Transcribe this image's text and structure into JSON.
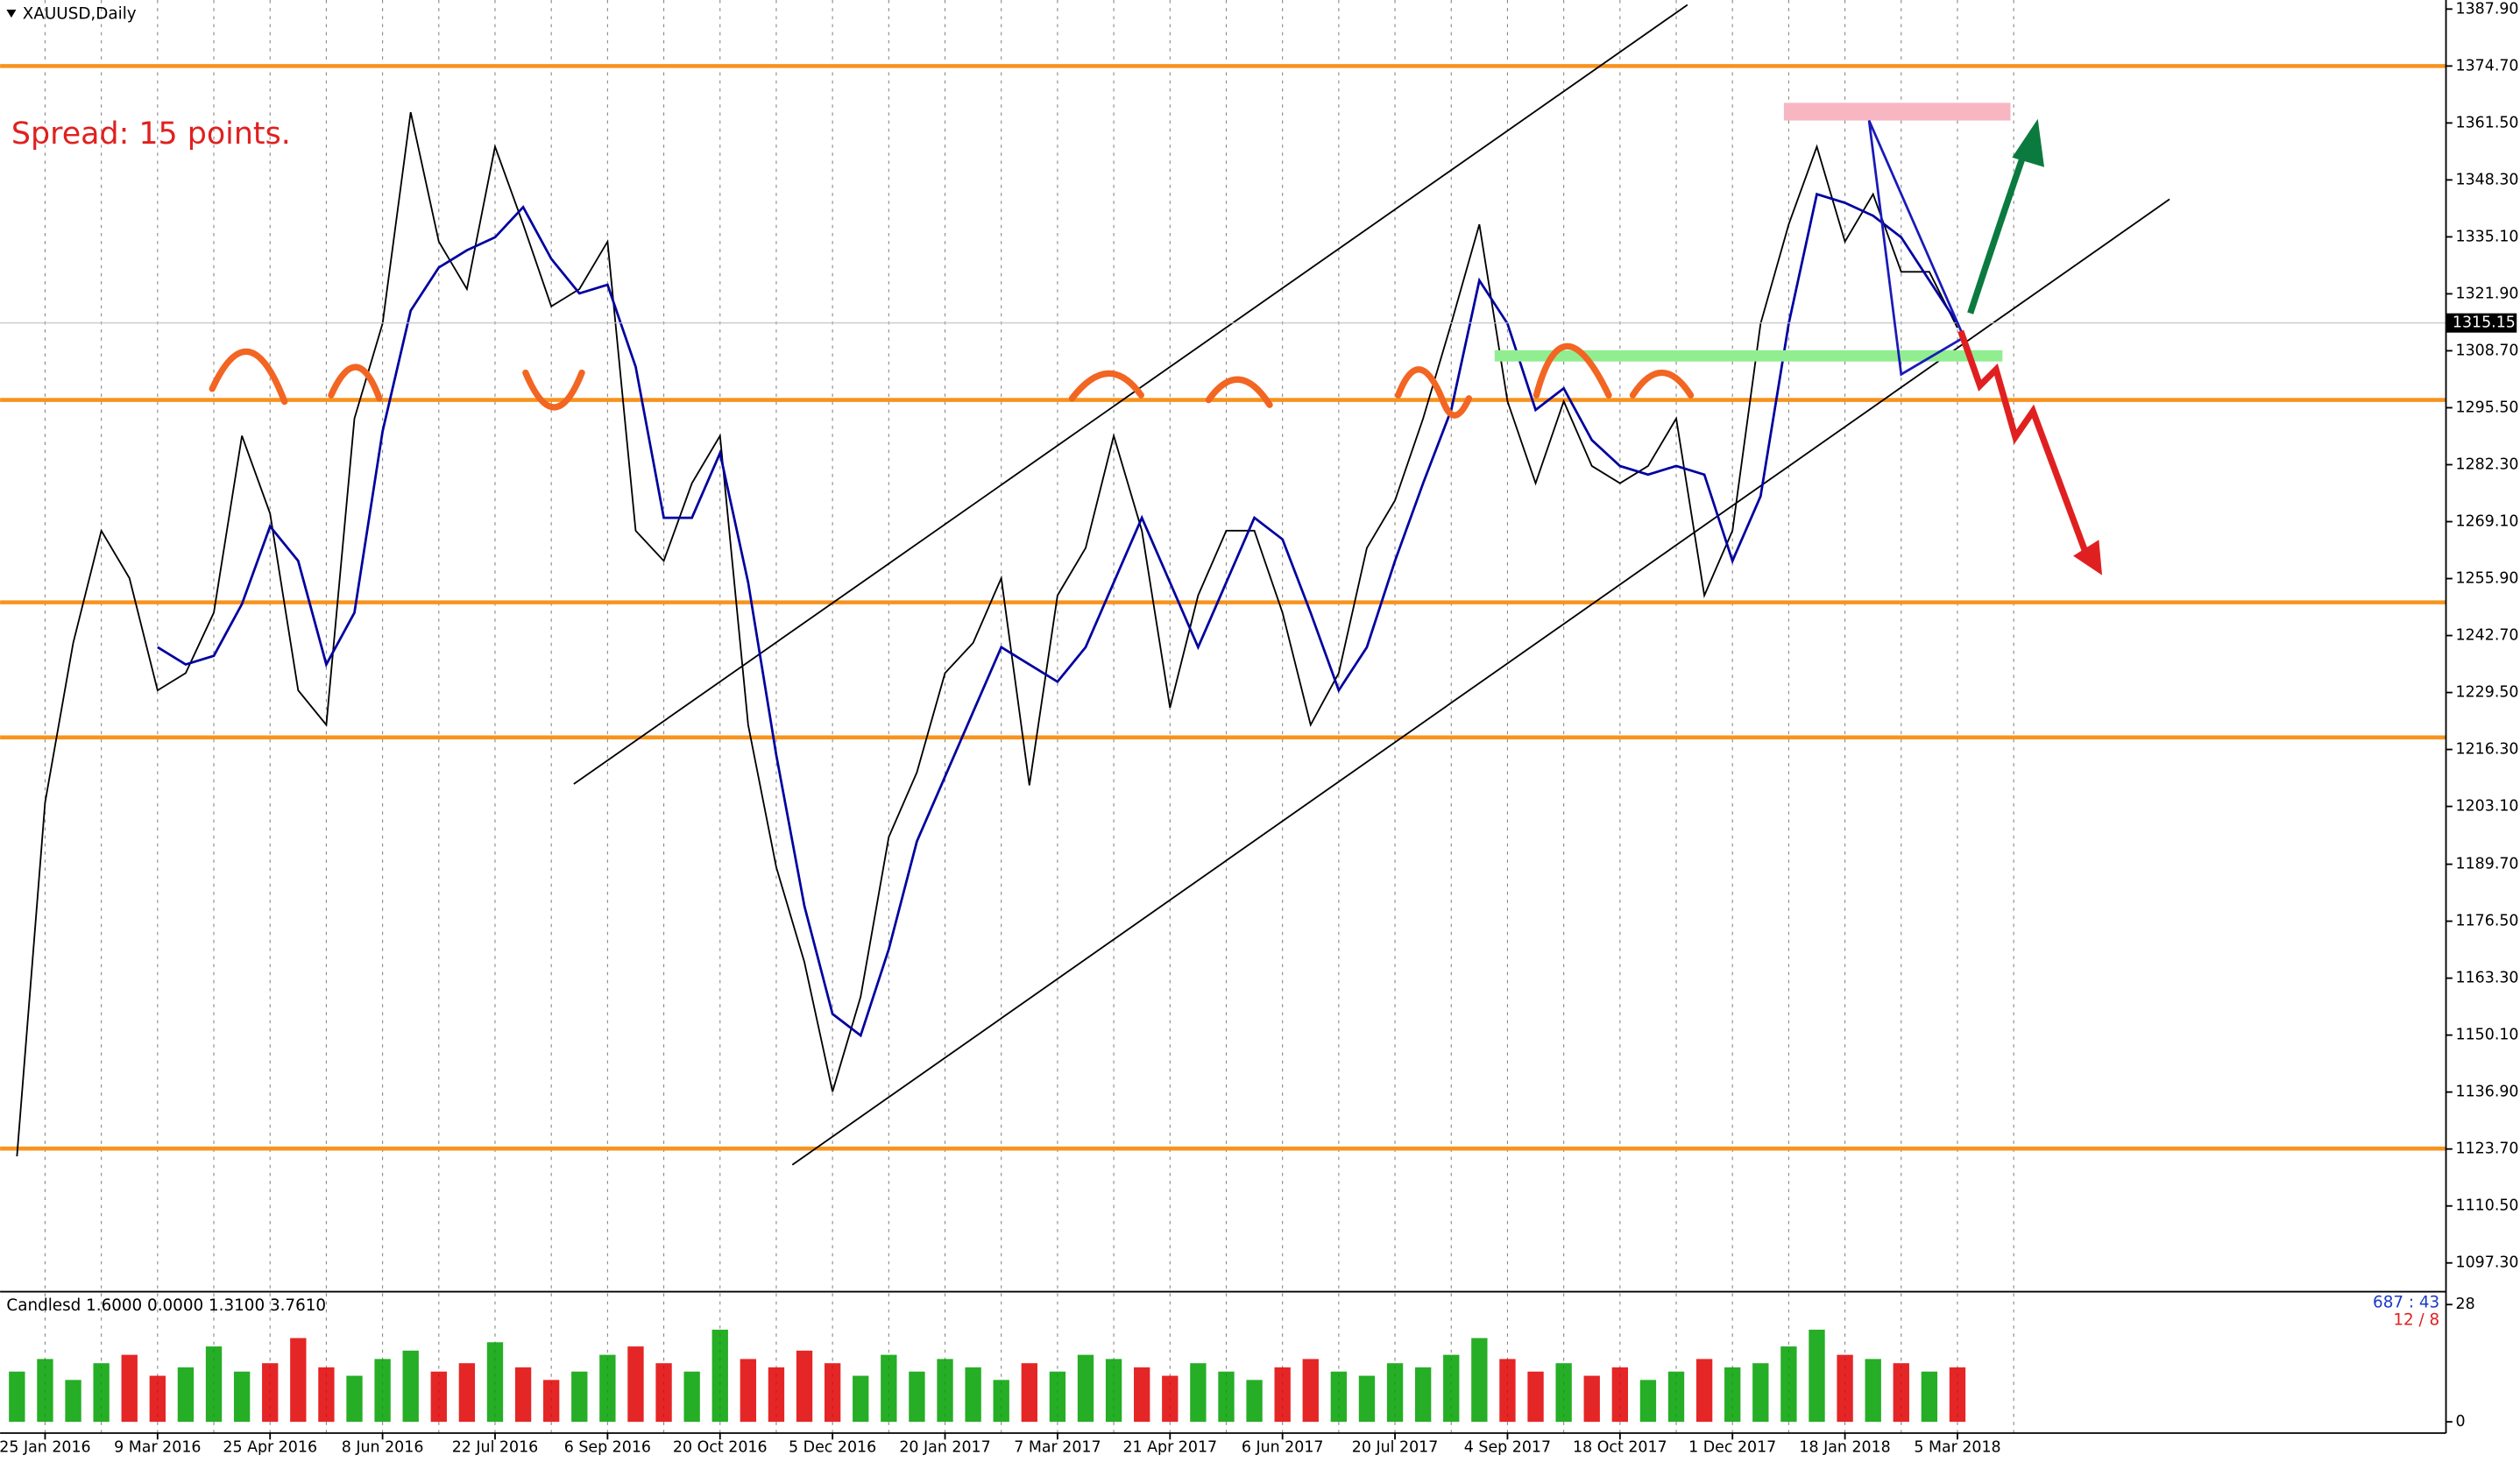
{
  "chart_data": [
    {
      "type": "line",
      "title": "XAUUSD,Daily",
      "annotation": "Spread: 15 points.",
      "categories": [
        null,
        "25 Jan 2016",
        null,
        null,
        null,
        "9 Mar 2016",
        null,
        null,
        null,
        "25 Apr 2016",
        null,
        null,
        null,
        "8 Jun 2016",
        null,
        null,
        null,
        "22 Jul 2016",
        null,
        null,
        null,
        "6 Sep 2016",
        null,
        null,
        null,
        "20 Oct 2016",
        null,
        null,
        null,
        "5 Dec 2016",
        null,
        null,
        null,
        "20 Jan 2017",
        null,
        null,
        null,
        "7 Mar 2017",
        null,
        null,
        null,
        "21 Apr 2017",
        null,
        null,
        null,
        "6 Jun 2017",
        null,
        null,
        null,
        "20 Jul 2017",
        null,
        null,
        null,
        "4 Sep 2017",
        null,
        null,
        null,
        "18 Oct 2017",
        null,
        null,
        null,
        "1 Dec 2017",
        null,
        null,
        null,
        "18 Jan 2018",
        null,
        null,
        null,
        "5 Mar 2018"
      ],
      "series": [
        {
          "color": "#000000",
          "values": [
            1122,
            1204,
            1241,
            1267,
            1256,
            1230,
            1234,
            1248,
            1289,
            1271,
            1230,
            1222,
            1293,
            1315,
            1364,
            1334,
            1323,
            1356,
            1338,
            1319,
            1323,
            1334,
            1267,
            1260,
            1278,
            1289,
            1222,
            1189,
            1167,
            1137,
            1159,
            1196,
            1211,
            1234,
            1241,
            1256,
            1208,
            1252,
            1263,
            1289,
            1267,
            1226,
            1252,
            1267,
            1267,
            1248,
            1222,
            1234,
            1263,
            1274,
            1293,
            1315,
            1338,
            1297,
            1278,
            1297,
            1282,
            1278,
            1282,
            1293,
            1252,
            1267,
            1315,
            1338,
            1356,
            1334,
            1345,
            1327,
            1327,
            1314
          ]
        },
        {
          "color": "#0000a0",
          "values": [
            null,
            null,
            null,
            null,
            null,
            1240,
            1236,
            1238,
            1250,
            1268,
            1260,
            1236,
            1248,
            1290,
            1318,
            1328,
            1332,
            1335,
            1342,
            1330,
            1322,
            1324,
            1305,
            1270,
            1270,
            1285,
            1255,
            1215,
            1180,
            1155,
            1150,
            1170,
            1195,
            1210,
            1225,
            1240,
            1236,
            1232,
            1240,
            1255,
            1270,
            1255,
            1240,
            1255,
            1270,
            1265,
            1248,
            1230,
            1240,
            1260,
            1278,
            1295,
            1325,
            1315,
            1295,
            1300,
            1288,
            1282,
            1280,
            1282,
            1280,
            1260,
            1275,
            1315,
            1345,
            1343,
            1340,
            1335,
            1325,
            1315
          ]
        }
      ],
      "levels": [
        1374.7,
        1297.3,
        1250.4,
        1219.1,
        1123.8
      ],
      "level_color": "#f7931e",
      "current_price": 1315.15,
      "ylim": [
        1091,
        1390
      ],
      "yticks": [
        1387.9,
        1374.7,
        1361.5,
        1348.3,
        1335.1,
        1321.9,
        1308.7,
        1295.5,
        1282.3,
        1269.1,
        1255.9,
        1242.7,
        1229.5,
        1216.3,
        1203.1,
        1189.7,
        1176.5,
        1163.3,
        1150.1,
        1136.9,
        1123.7,
        1110.5,
        1097.3
      ],
      "grid": true
    },
    {
      "type": "bar",
      "title": "Candlesd 1.6000 0.0000 1.3100 3.7610",
      "info": [
        "687 : 43",
        "12 / 8"
      ],
      "values": [
        12,
        15,
        10,
        14,
        16,
        11,
        13,
        18,
        12,
        14,
        20,
        13,
        11,
        15,
        17,
        12,
        14,
        19,
        13,
        10,
        12,
        16,
        18,
        14,
        12,
        22,
        15,
        13,
        17,
        14,
        11,
        16,
        12,
        15,
        13,
        10,
        14,
        12,
        16,
        15,
        13,
        11,
        14,
        12,
        10,
        13,
        15,
        12,
        11,
        14,
        13,
        16,
        20,
        15,
        12,
        14,
        11,
        13,
        10,
        12,
        15,
        13,
        14,
        18,
        22,
        16,
        15,
        14,
        12,
        13
      ],
      "colors": [
        "#00a000",
        "#e00000"
      ],
      "ylim": [
        0,
        28
      ],
      "yticks": [
        0,
        28
      ]
    }
  ]
}
